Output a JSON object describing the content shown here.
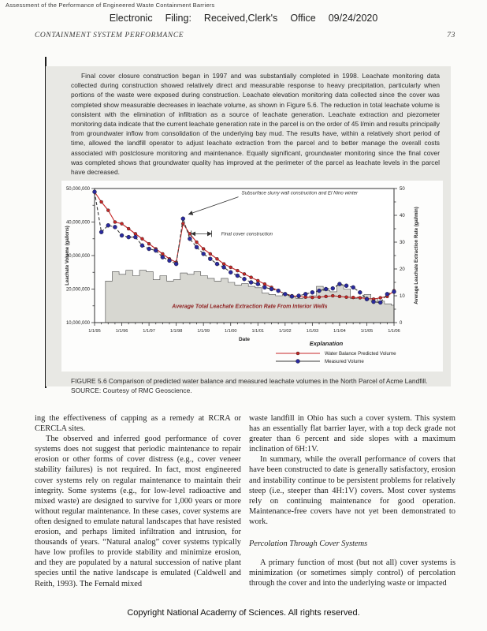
{
  "page": {
    "book_title": "Assessment of the Performance of Engineered Waste Containment Barriers",
    "efiling_parts": [
      "Electronic",
      "Filing:",
      "Received,Clerk's",
      "Office",
      "09/24/2020"
    ],
    "running_head": "CONTAINMENT SYSTEM PERFORMANCE",
    "page_number": "73",
    "footer": "Copyright National Academy of Sciences. All rights reserved."
  },
  "excerpt": {
    "paragraph": "Final cover closure construction began in 1997 and was substantially completed in 1998. Leachate monitoring data collected during construction showed relatively direct and measurable response to heavy precipitation, particularly when portions of the waste were exposed during construction. Leachate elevation monitoring data collected since the cover was completed show measurable decreases in leachate volume, as shown in Figure 5.6. The reduction in total leachate volume is consistent with the elimination of infiltration as a source of leachate generation. Leachate extraction and piezometer monitoring data indicate that the current leachate generation rate in the parcel is on the order of 45 l/min and results principally from groundwater inflow from consolidation of the underlying bay mud. The results have, within a relatively short period of time, allowed the landfill operator to adjust leachate extraction from the parcel and to better manage the overall costs associated with postclosure monitoring and maintenance. Equally significant, groundwater monitoring since the final cover was completed shows that groundwater quality has improved at the perimeter of the parcel as leachate levels in the parcel have decreased."
  },
  "figure": {
    "caption": "FIGURE 5.6  Comparison of predicted water balance and measured leachate volumes in the North Parcel of Acme Landfill. SOURCE: Courtesy of RMC Geoscience."
  },
  "columns": {
    "left_p1": "ing the effectiveness of capping as a remedy at RCRA or CERCLA sites.",
    "left_p2": "The observed and inferred good performance of cover systems does not suggest that periodic maintenance to repair erosion or other forms of cover distress (e.g., cover veneer stability failures) is not required. In fact, most engineered cover systems rely on regular maintenance to maintain their integrity. Some systems (e.g., for low-level radioactive and mixed waste) are designed to survive for 1,000 years or more without regular maintenance. In these cases, cover systems are often designed to emulate natural landscapes that have resisted erosion, and perhaps limited infiltration and intrusion, for thousands of years. “Natural analog” cover systems typically have low profiles to provide stability and minimize erosion, and they are populated by a natural succession of native plant species until the native landscape is emulated (Caldwell and Reith, 1993). The Fernald mixed",
    "right_p1": "waste landfill in Ohio has such a cover system. This system has an essentially flat barrier layer, with a top deck grade not greater than 6 percent and side slopes with a maximum inclination of 6H:1V.",
    "right_p2": "In summary, while the overall performance of covers that have been constructed to date is generally satisfactory, erosion and instability continue to be persistent problems for relatively steep (i.e., steeper than 4H:1V) covers. Most cover systems rely on continuing maintenance for good operation. Maintenance-free covers have not yet been demonstrated to work.",
    "right_heading": "Percolation Through Cover Systems",
    "right_p3": "A primary function of most (but not all) cover systems is minimization (or sometimes simply control) of percolation through the cover and into the underlying waste or impacted"
  },
  "chart_data": {
    "type": "line",
    "title": "",
    "xlabel": "Date",
    "ylabel_left": "Leachate Volume (gallons)",
    "ylabel_right": "Average Leachate Extraction Rate (gal/min)",
    "x_start": 1995,
    "x_end": 2006,
    "x_step": 0.25,
    "x_tick_labels": [
      "1/1/95",
      "1/1/96",
      "1/1/97",
      "1/1/98",
      "1/1/99",
      "1/1/00",
      "1/1/01",
      "1/1/02",
      "1/1/03",
      "1/1/04",
      "1/1/05",
      "1/1/06"
    ],
    "ylim_left": [
      10000000,
      50000000
    ],
    "ylim_right": [
      0,
      50
    ],
    "grid": false,
    "legend_position": "bottom-right",
    "legend_title": "Explanation",
    "series": [
      {
        "name": "Water Balance Predicted Volume",
        "color": "#c62828",
        "line_color": "#c62828",
        "dash": false,
        "marker_r": 2.0,
        "values_millions": [
          49,
          46,
          43.5,
          40,
          39.5,
          38,
          36.5,
          35,
          33.5,
          32,
          30.5,
          29,
          28,
          39.5,
          36.5,
          34,
          32,
          30.5,
          29,
          27.5,
          26.5,
          25.5,
          24.5,
          23.5,
          22.5,
          21.5,
          20.5,
          19.5,
          18.5,
          18,
          17.8,
          17.6,
          17.5,
          17.6,
          17.8,
          18,
          17.8,
          17.6,
          17.5,
          17.4,
          17.2,
          17,
          17.4,
          17.8,
          19.5
        ]
      },
      {
        "name": "Measured Volume",
        "color": "#2a2a9e",
        "line_color": "#3a3a3a",
        "dash": true,
        "marker_r": 2.5,
        "values_millions": [
          49,
          37,
          39,
          38.5,
          36,
          35.5,
          35.5,
          33,
          32,
          31.5,
          29.5,
          28.5,
          27.5,
          41,
          35,
          32.5,
          30.5,
          29,
          27.5,
          26.5,
          25,
          24,
          23,
          22,
          21.5,
          20.5,
          20,
          19.5,
          18.5,
          17.8,
          18,
          18.5,
          19,
          19.5,
          20,
          20.2,
          21.5,
          21,
          20.5,
          19,
          17,
          16.2,
          16,
          18.5,
          19.2
        ]
      }
    ],
    "extraction_rate_steps_gal_min": [
      [
        1995.4,
        15.5
      ],
      [
        1995.65,
        19
      ],
      [
        1995.9,
        18
      ],
      [
        1996.15,
        19.5
      ],
      [
        1996.4,
        17.5
      ],
      [
        1996.65,
        19.5
      ],
      [
        1996.9,
        19
      ],
      [
        1997.15,
        16
      ],
      [
        1997.4,
        17.5
      ],
      [
        1997.65,
        15.5
      ],
      [
        1997.9,
        16
      ],
      [
        1998.15,
        18.5
      ],
      [
        1998.4,
        18
      ],
      [
        1998.65,
        19
      ],
      [
        1998.9,
        17.5
      ],
      [
        1999.15,
        16.5
      ],
      [
        1999.4,
        15.5
      ],
      [
        1999.65,
        16.5
      ],
      [
        1999.9,
        15
      ],
      [
        2000.15,
        14
      ],
      [
        2000.4,
        14.5
      ],
      [
        2000.65,
        13.5
      ],
      [
        2000.9,
        13
      ],
      [
        2001.15,
        11
      ],
      [
        2001.4,
        10.5
      ],
      [
        2001.65,
        10
      ],
      [
        2001.9,
        10.5
      ],
      [
        2002.15,
        9.5
      ],
      [
        2002.4,
        9
      ],
      [
        2002.65,
        9.5
      ],
      [
        2002.9,
        10
      ],
      [
        2003.15,
        13.5
      ],
      [
        2003.4,
        12
      ],
      [
        2003.65,
        11.5
      ],
      [
        2003.9,
        14
      ],
      [
        2004.15,
        12.5
      ],
      [
        2004.4,
        9
      ],
      [
        2004.65,
        9.5
      ],
      [
        2004.9,
        10.5
      ],
      [
        2005.15,
        9
      ],
      [
        2005.4,
        8
      ],
      [
        2005.65,
        7
      ],
      [
        2005.9,
        6.5
      ]
    ],
    "area_color": "#d7d7d1",
    "annotations": {
      "slurry": {
        "text": "Subsurface slurry wall construction and El Nino winter",
        "tx": 2000.4,
        "ty": 48.2,
        "ax": 1998.45,
        "ay": 42.3
      },
      "cover": {
        "text": "Final cover construction",
        "x1": 1998.55,
        "x2": 1999.3,
        "y": 36.5,
        "tx": 1999.65
      },
      "rate_label": {
        "text": "Average Total Leachate Extraction Rate From Interior Wells",
        "x": 2000.7,
        "y": 14.3,
        "color": "#8e1f1f"
      }
    }
  }
}
